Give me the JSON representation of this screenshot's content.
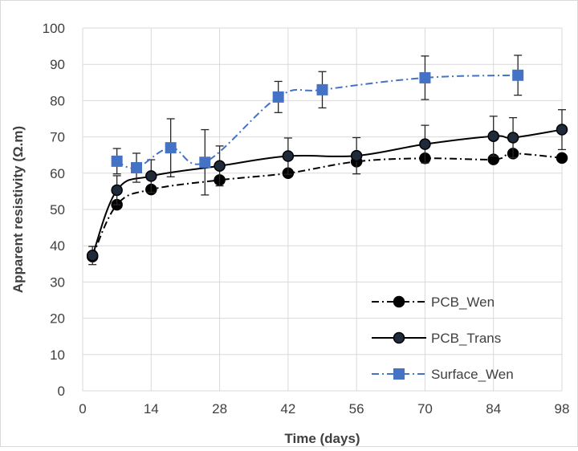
{
  "chart_data": {
    "type": "line",
    "title": "",
    "xlabel": "Time (days)",
    "ylabel": "Apparent resistivity (Ω.m)",
    "xlim": [
      0,
      98
    ],
    "ylim": [
      0,
      100
    ],
    "x_ticks": [
      0,
      14,
      28,
      42,
      56,
      70,
      84,
      98
    ],
    "y_ticks": [
      0,
      10,
      20,
      30,
      40,
      50,
      60,
      70,
      80,
      90,
      100
    ],
    "grid": "horizontal and vertical",
    "legend_position": "bottom-right",
    "series": [
      {
        "name": "PCB_Wen",
        "line_style": "dash-dot",
        "line_color": "#000000",
        "marker_color": "#000000",
        "marker_edge": "#000000",
        "error_bars": false,
        "points": [
          {
            "x": 2,
            "y": 37.0
          },
          {
            "x": 7,
            "y": 51.3
          },
          {
            "x": 14,
            "y": 55.5
          },
          {
            "x": 28,
            "y": 58.1
          },
          {
            "x": 42,
            "y": 60.0
          },
          {
            "x": 56,
            "y": 63.2
          },
          {
            "x": 70,
            "y": 64.1
          },
          {
            "x": 84,
            "y": 63.8
          },
          {
            "x": 88,
            "y": 65.4
          },
          {
            "x": 98,
            "y": 64.2
          }
        ]
      },
      {
        "name": "PCB_Trans",
        "line_style": "solid",
        "line_color": "#000000",
        "marker_color": "#1f2a3a",
        "marker_edge": "#000000",
        "error_bars": true,
        "points": [
          {
            "x": 2,
            "y": 37.3,
            "err": 2.5
          },
          {
            "x": 7,
            "y": 55.3,
            "err": 4.0
          },
          {
            "x": 14,
            "y": 59.2,
            "err": 4.5
          },
          {
            "x": 28,
            "y": 62.0,
            "err": 5.5
          },
          {
            "x": 42,
            "y": 64.7,
            "err": 5.0
          },
          {
            "x": 56,
            "y": 64.8,
            "err": 5.0
          },
          {
            "x": 70,
            "y": 68.0,
            "err": 5.2
          },
          {
            "x": 84,
            "y": 70.2,
            "err": 5.5
          },
          {
            "x": 88,
            "y": 69.8,
            "err": 5.5
          },
          {
            "x": 98,
            "y": 72.0,
            "err": 5.5
          }
        ]
      },
      {
        "name": "Surface_Wen",
        "line_style": "dash-dot",
        "line_color": "#4472c4",
        "marker_color": "#4472c4",
        "marker_edge": "#4472c4",
        "error_bars": true,
        "points": [
          {
            "x": 7,
            "y": 63.3,
            "err": 3.5
          },
          {
            "x": 11,
            "y": 61.5,
            "err": 4.0
          },
          {
            "x": 18,
            "y": 67.0,
            "err": 8.0
          },
          {
            "x": 25,
            "y": 63.0,
            "err": 9.0
          },
          {
            "x": 40,
            "y": 81.0,
            "err": 4.3
          },
          {
            "x": 49,
            "y": 83.0,
            "err": 5.0
          },
          {
            "x": 70,
            "y": 86.3,
            "err": 6.0
          },
          {
            "x": 89,
            "y": 87.0,
            "err": 5.5
          }
        ]
      }
    ]
  }
}
